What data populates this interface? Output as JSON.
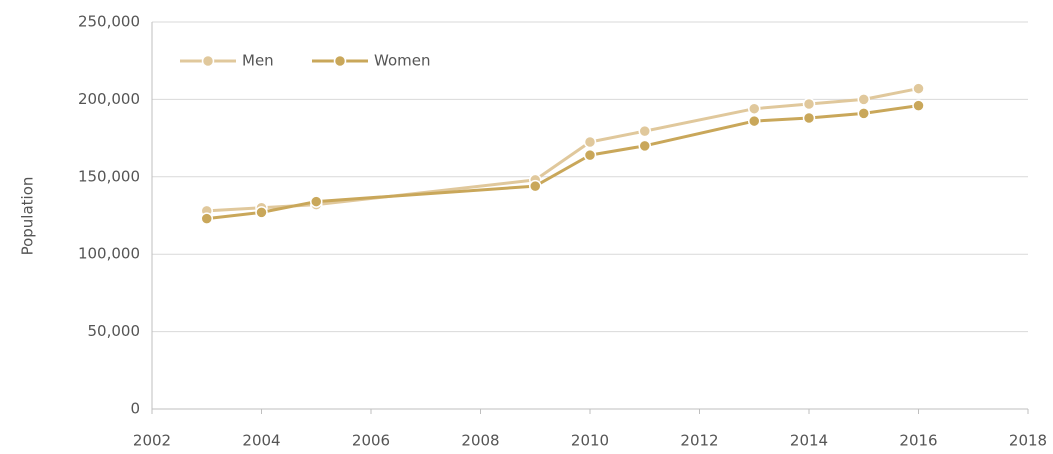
{
  "chart_data": {
    "type": "line",
    "ylabel": "Population",
    "x": [
      2003,
      2004,
      2005,
      2009,
      2010,
      2011,
      2013,
      2014,
      2015,
      2016
    ],
    "series": [
      {
        "name": "Men",
        "color": "#e0c89c",
        "values": [
          128000,
          130000,
          132000,
          148000,
          172500,
          179500,
          194000,
          197000,
          200000,
          207000
        ]
      },
      {
        "name": "Women",
        "color": "#c9a75a",
        "values": [
          123000,
          127000,
          134000,
          144000,
          164000,
          170000,
          186000,
          188000,
          191000,
          196000
        ]
      }
    ],
    "xlim": [
      2002,
      2018
    ],
    "xticks": [
      2002,
      2004,
      2006,
      2008,
      2010,
      2012,
      2014,
      2016,
      2018
    ],
    "ylim": [
      0,
      250000
    ],
    "yticks": [
      0,
      {
        "value": 50000,
        "label": "50,000"
      },
      {
        "value": 100000,
        "label": "100,000"
      },
      {
        "value": 150000,
        "label": "150,000"
      },
      {
        "value": 200000,
        "label": "200,000"
      },
      {
        "value": 250000,
        "label": "250,000"
      }
    ],
    "grid": true,
    "legend": "top-left"
  }
}
